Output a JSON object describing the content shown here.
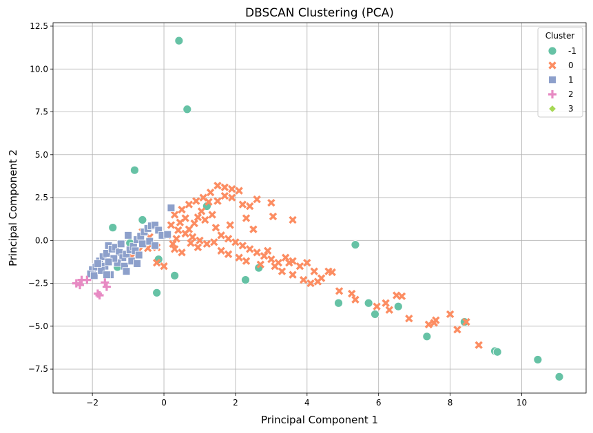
{
  "chart_data": {
    "type": "scatter",
    "title": "DBSCAN Clustering (PCA)",
    "xlabel": "Principal Component 1",
    "ylabel": "Principal Component 2",
    "xlim": [
      -3.1,
      11.8
    ],
    "ylim": [
      -8.9,
      12.7
    ],
    "xticks": [
      -2,
      0,
      2,
      4,
      6,
      8,
      10
    ],
    "yticks": [
      -7.5,
      -5.0,
      -2.5,
      0.0,
      2.5,
      5.0,
      7.5,
      10.0,
      12.5
    ],
    "grid": true,
    "legend": {
      "title": "Cluster",
      "placement": "top-right"
    },
    "series": [
      {
        "name": "-1",
        "marker": "circle",
        "color": "#66c2a5",
        "points": [
          [
            0.42,
            11.65
          ],
          [
            0.65,
            7.65
          ],
          [
            -0.82,
            4.1
          ],
          [
            -0.6,
            1.2
          ],
          [
            -1.43,
            0.75
          ],
          [
            -0.95,
            -0.15
          ],
          [
            -1.3,
            -1.55
          ],
          [
            -0.15,
            -1.1
          ],
          [
            0.3,
            -2.05
          ],
          [
            -0.2,
            -3.05
          ],
          [
            2.28,
            -2.3
          ],
          [
            2.65,
            -1.6
          ],
          [
            1.2,
            2.0
          ],
          [
            5.35,
            -0.25
          ],
          [
            4.88,
            -3.65
          ],
          [
            5.72,
            -3.65
          ],
          [
            5.9,
            -4.3
          ],
          [
            6.55,
            -3.85
          ],
          [
            7.35,
            -5.6
          ],
          [
            8.4,
            -4.75
          ],
          [
            9.25,
            -6.45
          ],
          [
            9.32,
            -6.5
          ],
          [
            10.45,
            -6.95
          ],
          [
            11.05,
            -7.95
          ]
        ]
      },
      {
        "name": "0",
        "marker": "x",
        "color": "#fc8d62",
        "points": [
          [
            0.3,
            1.5
          ],
          [
            0.5,
            1.8
          ],
          [
            0.7,
            2.1
          ],
          [
            0.9,
            2.3
          ],
          [
            1.1,
            2.5
          ],
          [
            1.3,
            2.8
          ],
          [
            1.5,
            3.2
          ],
          [
            1.7,
            3.1
          ],
          [
            1.9,
            3.0
          ],
          [
            2.1,
            2.9
          ],
          [
            2.2,
            2.1
          ],
          [
            2.4,
            2.0
          ],
          [
            2.6,
            2.4
          ],
          [
            3.0,
            2.2
          ],
          [
            3.05,
            1.4
          ],
          [
            3.6,
            1.2
          ],
          [
            2.5,
            0.65
          ],
          [
            1.85,
            0.9
          ],
          [
            2.3,
            1.3
          ],
          [
            0.2,
            0.9
          ],
          [
            0.4,
            0.6
          ],
          [
            0.6,
            0.4
          ],
          [
            0.8,
            0.2
          ],
          [
            1.0,
            0.0
          ],
          [
            1.2,
            -0.2
          ],
          [
            1.4,
            -0.1
          ],
          [
            1.6,
            0.3
          ],
          [
            1.8,
            0.1
          ],
          [
            2.0,
            -0.1
          ],
          [
            2.2,
            -0.3
          ],
          [
            2.4,
            -0.5
          ],
          [
            2.6,
            -0.7
          ],
          [
            2.8,
            -0.9
          ],
          [
            3.0,
            -1.1
          ],
          [
            3.2,
            -1.3
          ],
          [
            3.4,
            -1.0
          ],
          [
            3.6,
            -1.2
          ],
          [
            3.8,
            -1.5
          ],
          [
            4.0,
            -1.3
          ],
          [
            4.2,
            -1.8
          ],
          [
            4.4,
            -2.2
          ],
          [
            4.6,
            -1.8
          ],
          [
            4.7,
            -1.85
          ],
          [
            3.6,
            -2.0
          ],
          [
            3.9,
            -2.3
          ],
          [
            4.1,
            -2.5
          ],
          [
            4.3,
            -2.4
          ],
          [
            4.9,
            -2.95
          ],
          [
            5.25,
            -3.1
          ],
          [
            5.35,
            -3.45
          ],
          [
            5.95,
            -3.85
          ],
          [
            6.2,
            -3.65
          ],
          [
            6.3,
            -4.05
          ],
          [
            6.5,
            -3.2
          ],
          [
            6.65,
            -3.25
          ],
          [
            6.85,
            -4.55
          ],
          [
            7.4,
            -4.9
          ],
          [
            7.55,
            -4.8
          ],
          [
            7.6,
            -4.65
          ],
          [
            8.0,
            -4.3
          ],
          [
            8.2,
            -5.2
          ],
          [
            8.45,
            -4.75
          ],
          [
            8.8,
            -6.1
          ],
          [
            -0.6,
            0.5
          ],
          [
            -0.4,
            0.2
          ],
          [
            -0.2,
            -0.4
          ],
          [
            -0.45,
            -0.45
          ],
          [
            -0.7,
            -0.6
          ],
          [
            -0.9,
            -0.95
          ],
          [
            -0.2,
            -1.3
          ],
          [
            0.0,
            -1.5
          ],
          [
            0.25,
            -0.2
          ],
          [
            0.5,
            -0.7
          ],
          [
            0.75,
            -0.15
          ],
          [
            0.95,
            -0.4
          ],
          [
            1.15,
            1.2
          ],
          [
            1.35,
            1.5
          ],
          [
            1.5,
            2.3
          ],
          [
            1.7,
            2.6
          ],
          [
            0.6,
            1.3
          ],
          [
            0.35,
            0.1
          ],
          [
            1.9,
            2.5
          ],
          [
            1.25,
            2.25
          ],
          [
            0.85,
            1.0
          ],
          [
            1.05,
            1.7
          ],
          [
            2.7,
            -1.4
          ],
          [
            2.9,
            -0.6
          ],
          [
            3.1,
            -1.5
          ],
          [
            3.3,
            -1.8
          ],
          [
            3.5,
            -1.3
          ],
          [
            1.6,
            -0.6
          ],
          [
            1.8,
            -0.8
          ],
          [
            2.1,
            -1.0
          ],
          [
            2.3,
            -1.2
          ],
          [
            0.3,
            -0.5
          ],
          [
            1.45,
            0.75
          ],
          [
            0.1,
            0.3
          ],
          [
            0.45,
            1.05
          ],
          [
            0.7,
            0.65
          ],
          [
            0.95,
            1.35
          ]
        ]
      },
      {
        "name": "1",
        "marker": "square",
        "color": "#8da0cb",
        "points": [
          [
            -2.0,
            -1.7
          ],
          [
            -1.9,
            -1.55
          ],
          [
            -1.8,
            -1.2
          ],
          [
            -1.7,
            -0.95
          ],
          [
            -1.6,
            -0.75
          ],
          [
            -1.55,
            -0.3
          ],
          [
            -1.45,
            -0.5
          ],
          [
            -1.35,
            -0.4
          ],
          [
            -1.25,
            -0.7
          ],
          [
            -1.15,
            -1.0
          ],
          [
            -1.05,
            -0.8
          ],
          [
            -0.95,
            -0.55
          ],
          [
            -0.85,
            -0.35
          ],
          [
            -0.75,
            0.05
          ],
          [
            -0.65,
            0.25
          ],
          [
            -0.55,
            0.5
          ],
          [
            -0.45,
            0.7
          ],
          [
            -0.35,
            0.85
          ],
          [
            -0.25,
            0.9
          ],
          [
            -0.15,
            0.6
          ],
          [
            -0.05,
            0.3
          ],
          [
            -1.65,
            -1.5
          ],
          [
            -1.5,
            -2.0
          ],
          [
            -1.3,
            -1.3
          ],
          [
            -1.1,
            -1.5
          ],
          [
            -1.05,
            -1.8
          ],
          [
            -0.9,
            -1.2
          ],
          [
            -0.75,
            -1.35
          ],
          [
            -2.05,
            -1.95
          ],
          [
            -1.95,
            -2.05
          ],
          [
            -1.75,
            -1.75
          ],
          [
            -1.4,
            -1.05
          ],
          [
            -1.2,
            -0.2
          ],
          [
            -1.0,
            0.3
          ],
          [
            -0.6,
            -0.2
          ],
          [
            -0.4,
            -0.05
          ],
          [
            -0.8,
            -0.6
          ],
          [
            0.1,
            0.35
          ],
          [
            0.2,
            1.9
          ],
          [
            -0.25,
            -0.3
          ],
          [
            -1.55,
            -1.25
          ],
          [
            -0.7,
            -0.85
          ],
          [
            -1.6,
            -2.0
          ],
          [
            -1.85,
            -1.35
          ]
        ]
      },
      {
        "name": "2",
        "marker": "plus",
        "color": "#e78ac3",
        "points": [
          [
            -2.45,
            -2.5
          ],
          [
            -2.3,
            -2.3
          ],
          [
            -2.15,
            -2.3
          ],
          [
            -2.35,
            -2.6
          ],
          [
            -1.85,
            -3.1
          ],
          [
            -1.8,
            -3.2
          ],
          [
            -1.65,
            -2.45
          ],
          [
            -1.6,
            -2.7
          ]
        ]
      },
      {
        "name": "3",
        "marker": "diamond",
        "color": "#a6d854",
        "points": []
      }
    ]
  }
}
